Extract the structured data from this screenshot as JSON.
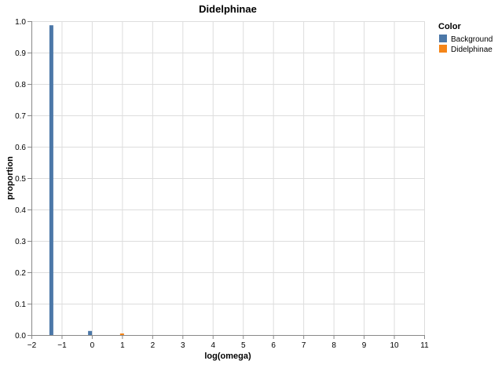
{
  "chart_data": {
    "type": "bar",
    "title": "Didelphinae",
    "xlabel": "log(omega)",
    "ylabel": "proportion",
    "xlim": [
      -2,
      11
    ],
    "ylim": [
      0,
      1
    ],
    "xticks": [
      "−2",
      "−1",
      "0",
      "1",
      "2",
      "3",
      "4",
      "5",
      "6",
      "7",
      "8",
      "9",
      "10",
      "11"
    ],
    "yticks": [
      "0.0",
      "0.1",
      "0.2",
      "0.3",
      "0.4",
      "0.5",
      "0.6",
      "0.7",
      "0.8",
      "0.9",
      "1.0"
    ],
    "grid": true,
    "legend": {
      "title": "Color",
      "placement": "top-right"
    },
    "series": [
      {
        "name": "Background",
        "color": "#4c78a8",
        "points": [
          {
            "x": -1.34,
            "y": 0.987
          },
          {
            "x": -0.06,
            "y": 0.013
          }
        ]
      },
      {
        "name": "Didelphinae",
        "color": "#f58518",
        "points": [
          {
            "x": 1.0,
            "y": 0.005
          }
        ]
      }
    ]
  }
}
